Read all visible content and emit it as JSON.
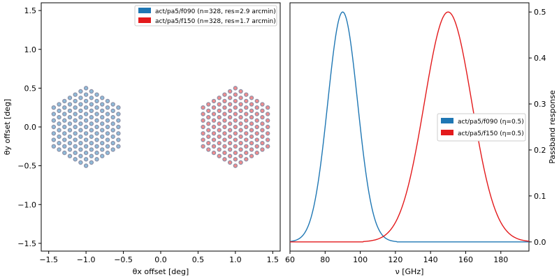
{
  "chart_data": [
    {
      "type": "scatter",
      "xlabel": "θx offset [deg]",
      "ylabel": "θy offset [deg]",
      "xlim": [
        -1.6,
        1.6
      ],
      "ylim": [
        -1.6,
        1.6
      ],
      "x_ticks": [
        "−1.5",
        "−1.0",
        "−0.5",
        "0.0",
        "0.5",
        "1.0",
        "1.5"
      ],
      "y_ticks": [
        "−1.5",
        "−1.0",
        "−0.5",
        "0.0",
        "0.5",
        "1.0",
        "1.5"
      ],
      "legend_position": "top-right",
      "series": [
        {
          "name": "act/pa5/f090 (n=328, res=2.9 arcmin)",
          "color": "#1f77b4",
          "center": [
            -1.0,
            0.0
          ],
          "hex_radius_deg": 0.5,
          "ring_count": 6
        },
        {
          "name": "act/pa5/f150 (n=328, res=1.7 arcmin)",
          "color": "#e31a1c",
          "center": [
            1.0,
            0.0
          ],
          "hex_radius_deg": 0.5,
          "ring_count": 6
        }
      ],
      "marker_color": "#8c8fa6"
    },
    {
      "type": "line",
      "xlabel": "ν [GHz]",
      "ylabel": "Passband response",
      "xlim": [
        60,
        196
      ],
      "ylim": [
        -0.02,
        0.52
      ],
      "x_ticks": [
        "60",
        "80",
        "100",
        "120",
        "140",
        "160",
        "180"
      ],
      "y_ticks": [
        "0.0",
        "0.1",
        "0.2",
        "0.3",
        "0.4",
        "0.5"
      ],
      "legend_position": "center-right",
      "series": [
        {
          "name": "act/pa5/f090 (η=0.5)",
          "color": "#1f77b4",
          "peak_x": 90,
          "peak_y": 0.5,
          "sigma": 8.5,
          "x_range": [
            60,
            196
          ]
        },
        {
          "name": "act/pa5/f150 (η=0.5)",
          "color": "#e31a1c",
          "peak_x": 150,
          "peak_y": 0.5,
          "sigma": 13.5,
          "x_range": [
            60,
            196
          ]
        }
      ]
    }
  ]
}
